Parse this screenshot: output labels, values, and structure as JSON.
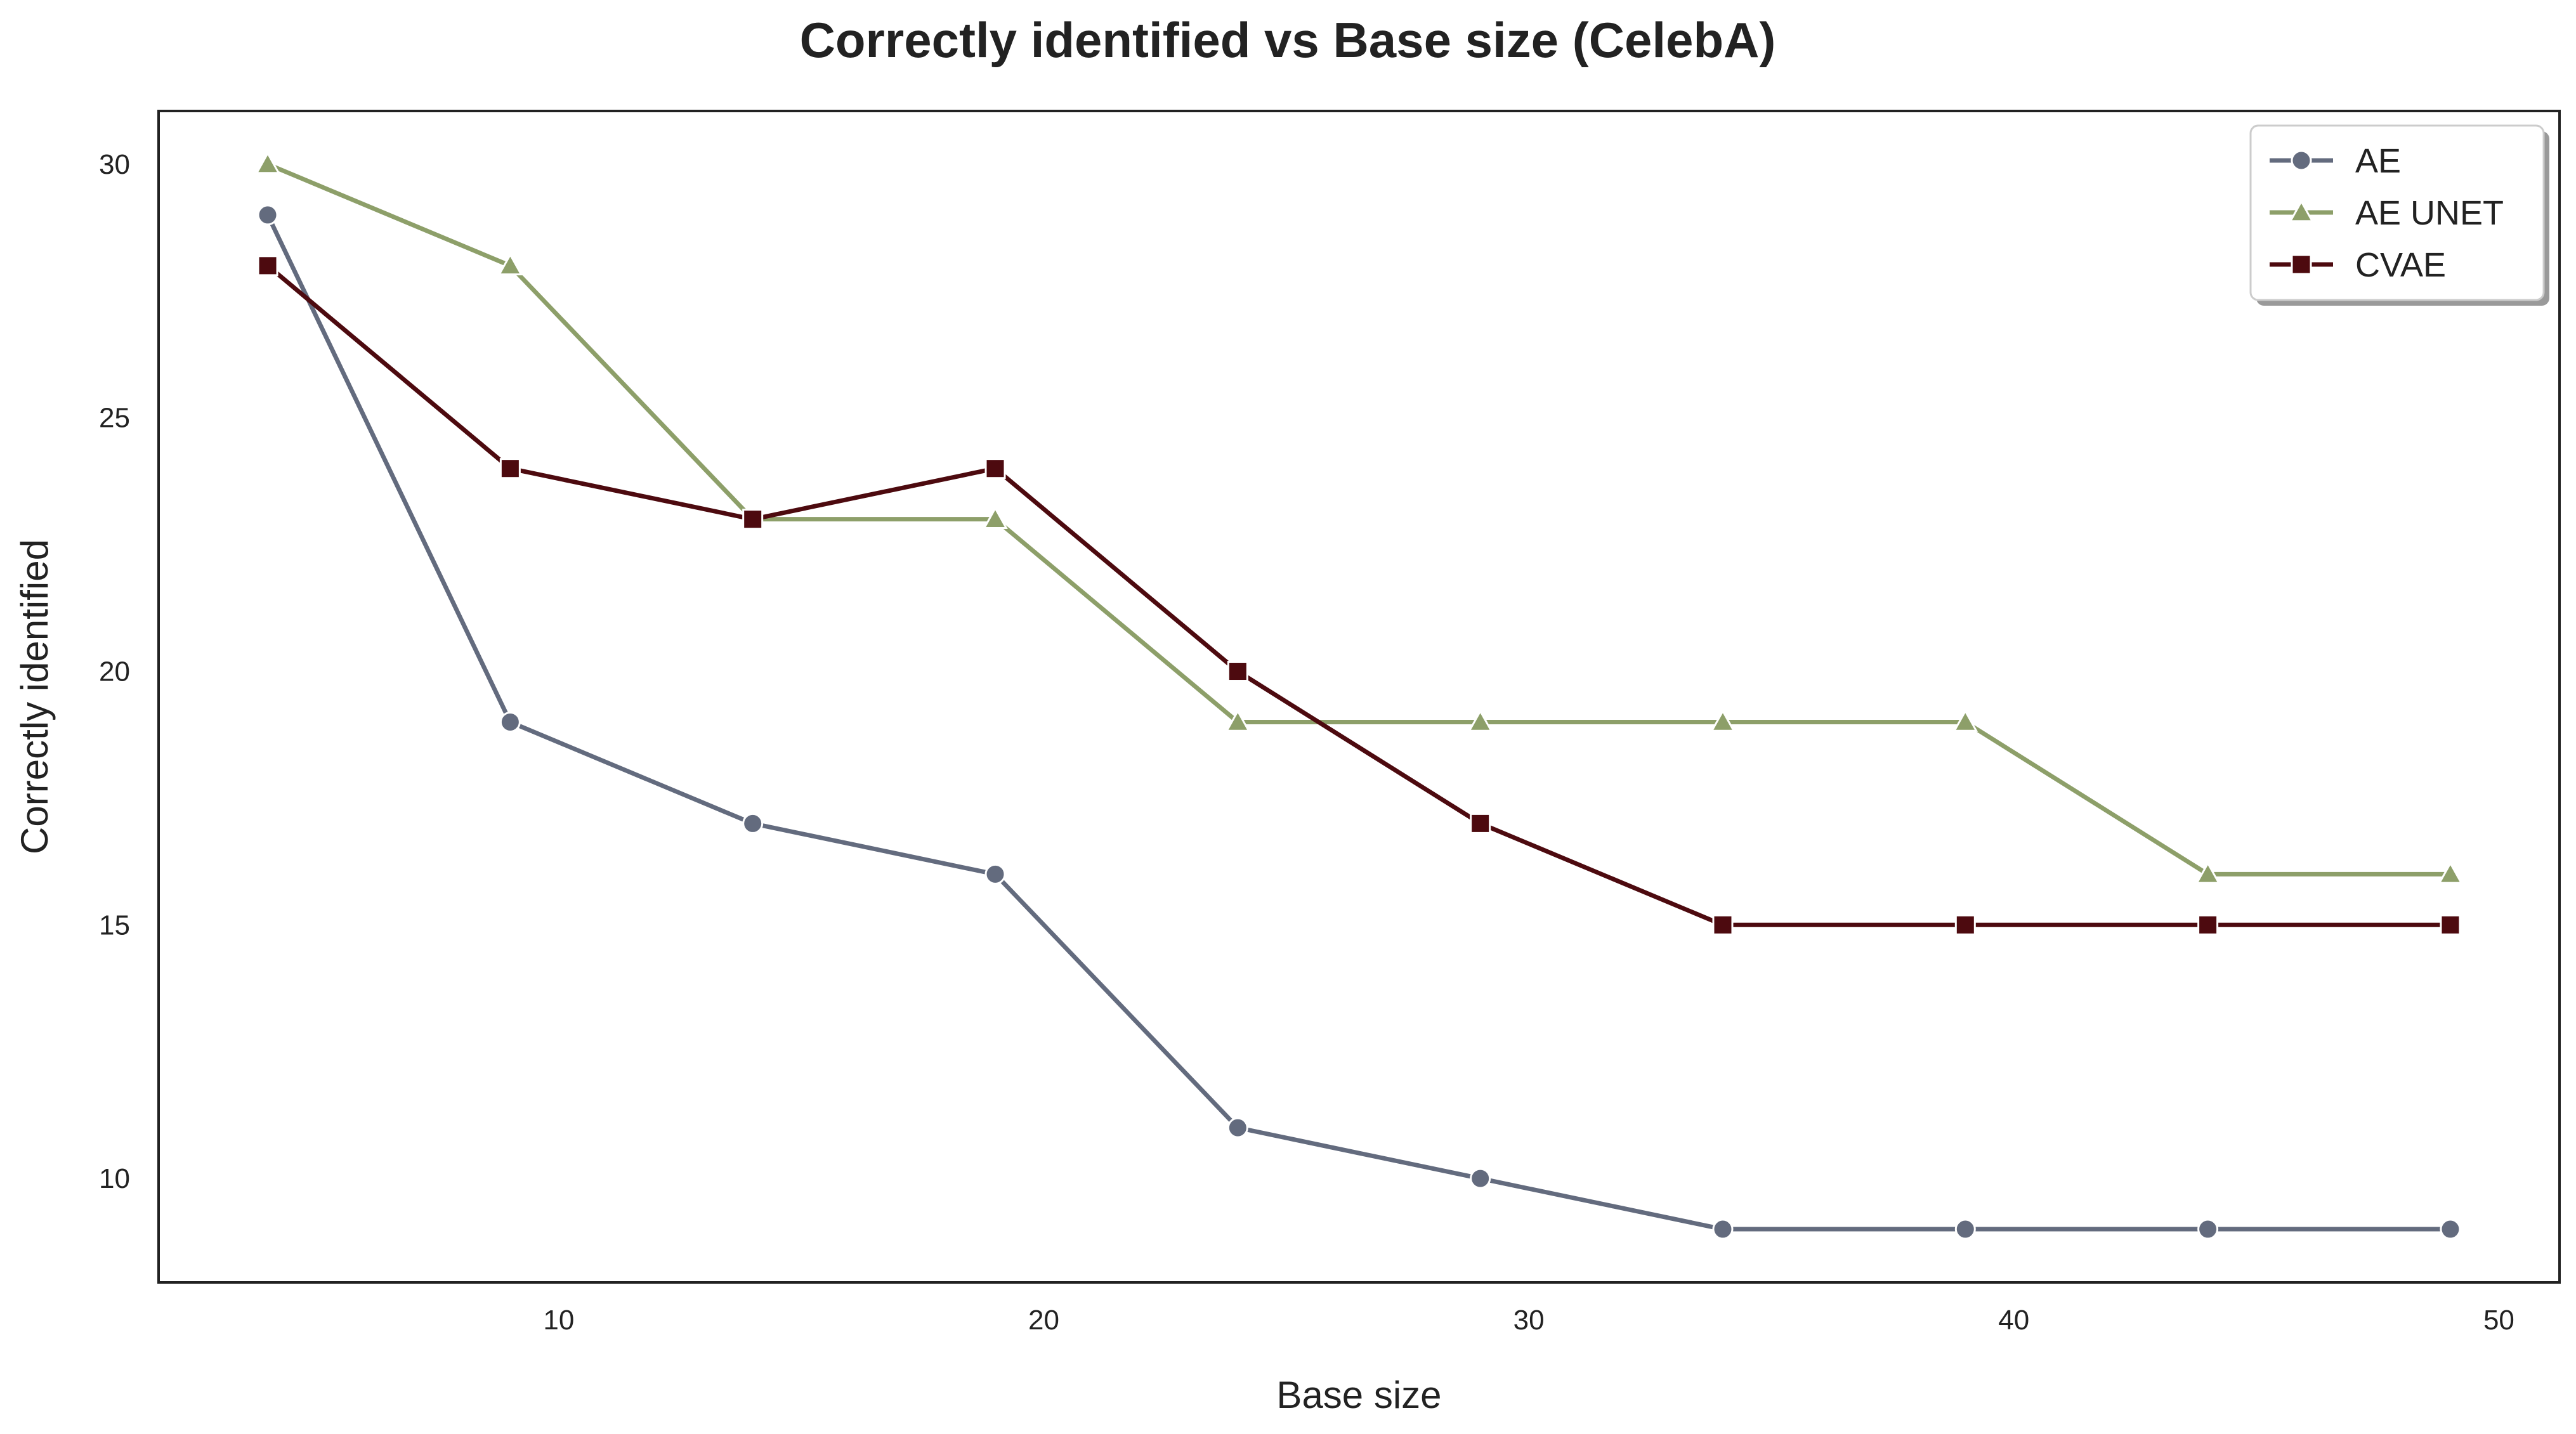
{
  "chart_data": {
    "type": "line",
    "title": "Correctly identified vs Base size (CelebA)",
    "xlabel": "Base size",
    "ylabel": "Correctly identified",
    "x": [
      4,
      9,
      14,
      19,
      24,
      29,
      34,
      39,
      44,
      49
    ],
    "xlim": [
      1.75,
      51.25
    ],
    "ylim": [
      7.95,
      31.05
    ],
    "xticks": [
      10,
      20,
      30,
      40,
      50
    ],
    "yticks": [
      10,
      15,
      20,
      25,
      30
    ],
    "grid": false,
    "legend_position": "top-right",
    "series": [
      {
        "name": "AE",
        "marker": "circle",
        "color": "#636b7e",
        "values": [
          29,
          19,
          17,
          16,
          11,
          10,
          9,
          9,
          9,
          9
        ]
      },
      {
        "name": "AE UNET",
        "marker": "triangle",
        "color": "#8d9f69",
        "values": [
          30,
          28,
          23,
          23,
          19,
          19,
          19,
          19,
          16,
          16
        ]
      },
      {
        "name": "CVAE",
        "marker": "square",
        "color": "#4d0a0f",
        "values": [
          28,
          24,
          23,
          24,
          20,
          17,
          15,
          15,
          15,
          15
        ]
      }
    ]
  }
}
